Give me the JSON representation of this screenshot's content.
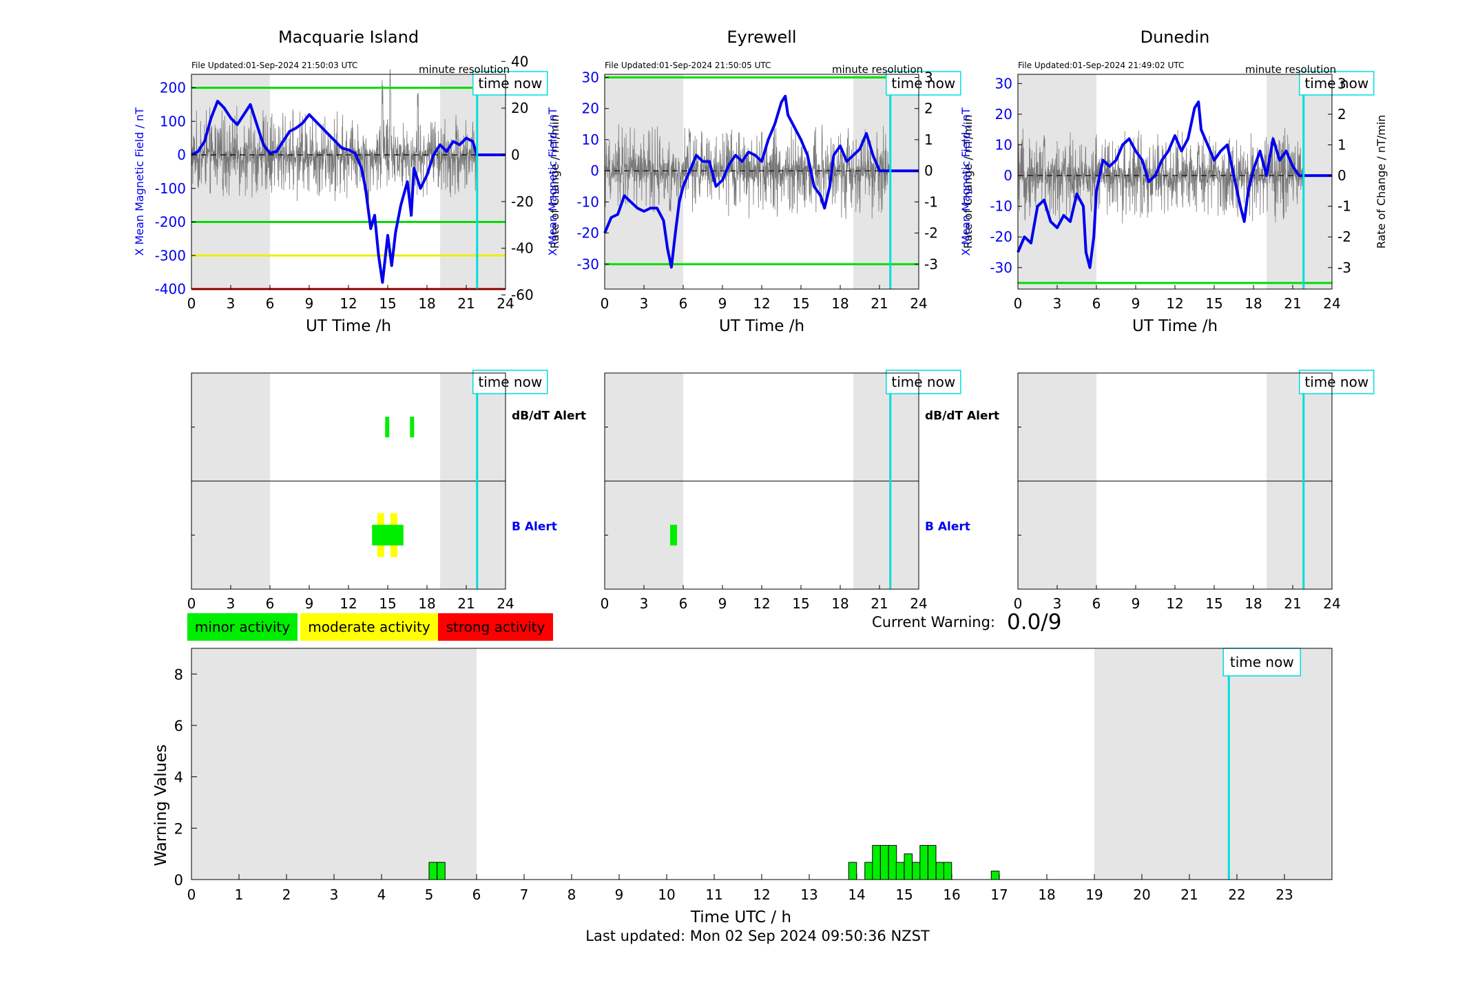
{
  "stations": [
    {
      "name": "Macquarie Island",
      "file_updated": "File Updated:01-Sep-2024 21:50:03 UTC",
      "resolution": "minute resolution",
      "time_now_label": "time now",
      "ylabel_left": "X Mean Magnetic Field / nT",
      "ylabel_right": "Rate of Change / nT/min",
      "xlabel": "UT Time /h",
      "left_ylim": [
        -400,
        240
      ],
      "left_ticks": [
        200,
        100,
        0,
        -100,
        -200,
        -300,
        -400
      ],
      "right_ticks": [
        40,
        20,
        0,
        -20,
        -40,
        -60
      ],
      "threshold_lines": [
        {
          "value": 200,
          "color": "#00dd00"
        },
        {
          "value": -200,
          "color": "#00dd00"
        },
        {
          "value": -300,
          "color": "#eeee00"
        },
        {
          "value": -400,
          "color": "#dd0000"
        }
      ],
      "x_series": [
        [
          0,
          0
        ],
        [
          0.5,
          10
        ],
        [
          1,
          40
        ],
        [
          1.5,
          110
        ],
        [
          2,
          160
        ],
        [
          2.5,
          140
        ],
        [
          3,
          110
        ],
        [
          3.5,
          90
        ],
        [
          4,
          120
        ],
        [
          4.5,
          150
        ],
        [
          5,
          90
        ],
        [
          5.5,
          30
        ],
        [
          6,
          5
        ],
        [
          6.5,
          10
        ],
        [
          7,
          40
        ],
        [
          7.5,
          70
        ],
        [
          8,
          80
        ],
        [
          8.5,
          95
        ],
        [
          9,
          120
        ],
        [
          9.5,
          100
        ],
        [
          10,
          80
        ],
        [
          10.5,
          60
        ],
        [
          11,
          40
        ],
        [
          11.5,
          20
        ],
        [
          12,
          15
        ],
        [
          12.5,
          5
        ],
        [
          13,
          -40
        ],
        [
          13.3,
          -100
        ],
        [
          13.7,
          -220
        ],
        [
          14,
          -180
        ],
        [
          14.3,
          -300
        ],
        [
          14.6,
          -380
        ],
        [
          15,
          -240
        ],
        [
          15.3,
          -330
        ],
        [
          15.6,
          -230
        ],
        [
          16,
          -150
        ],
        [
          16.5,
          -80
        ],
        [
          16.8,
          -180
        ],
        [
          17,
          -40
        ],
        [
          17.5,
          -100
        ],
        [
          18,
          -60
        ],
        [
          18.5,
          0
        ],
        [
          19,
          30
        ],
        [
          19.5,
          10
        ],
        [
          20,
          40
        ],
        [
          20.5,
          30
        ],
        [
          21,
          50
        ],
        [
          21.5,
          40
        ],
        [
          21.8,
          0
        ],
        [
          24,
          0
        ]
      ],
      "roc_amplitude": 14,
      "roc_spikes": [
        [
          13.5,
          -30
        ],
        [
          14.6,
          45
        ],
        [
          15.2,
          50
        ],
        [
          16.7,
          -35
        ],
        [
          17.3,
          38
        ]
      ],
      "alerts": {
        "dbdt_label": "dB/dT Alert",
        "b_label": "B Alert",
        "dbdt": [
          {
            "t0": 14.8,
            "t1": 15.1,
            "level": "minor"
          },
          {
            "t0": 16.7,
            "t1": 17.0,
            "level": "minor"
          }
        ],
        "b": [
          {
            "t0": 14.2,
            "t1": 14.7,
            "level": "moderate"
          },
          {
            "t0": 15.2,
            "t1": 15.6,
            "level": "moderate"
          },
          {
            "t0": 13.8,
            "t1": 16.2,
            "level": "minor"
          }
        ]
      }
    },
    {
      "name": "Eyrewell",
      "file_updated": "File Updated:01-Sep-2024 21:50:05 UTC",
      "resolution": "minute resolution",
      "time_now_label": "time now",
      "ylabel_left": "X Mean Magnetic Field / nT",
      "ylabel_right": "Rate of Change / nT/min",
      "xlabel": "UT Time /h",
      "left_ylim": [
        -38,
        31
      ],
      "left_ticks": [
        30,
        20,
        10,
        0,
        -10,
        -20,
        -30
      ],
      "right_ticks": [
        3,
        2,
        1,
        0,
        -1,
        -2,
        -3
      ],
      "threshold_lines": [
        {
          "value": 30,
          "color": "#00dd00"
        },
        {
          "value": -30,
          "color": "#00dd00"
        }
      ],
      "x_series": [
        [
          0,
          -20
        ],
        [
          0.5,
          -15
        ],
        [
          1,
          -14
        ],
        [
          1.5,
          -8
        ],
        [
          2,
          -10
        ],
        [
          2.5,
          -12
        ],
        [
          3,
          -13
        ],
        [
          3.5,
          -12
        ],
        [
          4,
          -12
        ],
        [
          4.5,
          -16
        ],
        [
          4.8,
          -25
        ],
        [
          5.1,
          -31
        ],
        [
          5.4,
          -20
        ],
        [
          5.7,
          -10
        ],
        [
          6,
          -5
        ],
        [
          6.5,
          0
        ],
        [
          7,
          5
        ],
        [
          7.5,
          3
        ],
        [
          8,
          3
        ],
        [
          8.5,
          -5
        ],
        [
          9,
          -3
        ],
        [
          9.5,
          2
        ],
        [
          10,
          5
        ],
        [
          10.5,
          3
        ],
        [
          11,
          6
        ],
        [
          11.5,
          5
        ],
        [
          12,
          3
        ],
        [
          12.5,
          10
        ],
        [
          13,
          15
        ],
        [
          13.5,
          22
        ],
        [
          13.8,
          24
        ],
        [
          14,
          18
        ],
        [
          14.5,
          14
        ],
        [
          15,
          10
        ],
        [
          15.5,
          5
        ],
        [
          16,
          -5
        ],
        [
          16.5,
          -8
        ],
        [
          16.8,
          -12
        ],
        [
          17.2,
          -5
        ],
        [
          17.5,
          5
        ],
        [
          18,
          8
        ],
        [
          18.5,
          3
        ],
        [
          19,
          5
        ],
        [
          19.5,
          7
        ],
        [
          20,
          12
        ],
        [
          20.5,
          5
        ],
        [
          21,
          0
        ],
        [
          24,
          0
        ]
      ],
      "roc_amplitude": 0.9,
      "roc_spikes": [
        [
          5.0,
          -1.6
        ],
        [
          6.5,
          1.5
        ],
        [
          12.0,
          1.4
        ],
        [
          16.5,
          -1.3
        ]
      ],
      "alerts": {
        "dbdt_label": "dB/dT Alert",
        "b_label": "B Alert",
        "dbdt": [],
        "b": [
          {
            "t0": 5.0,
            "t1": 5.4,
            "level": "minor"
          }
        ]
      }
    },
    {
      "name": "Dunedin",
      "file_updated": "File Updated:01-Sep-2024 21:49:02 UTC",
      "resolution": "minute resolution",
      "time_now_label": "time now",
      "ylabel_left": "X Mean Magnetic Field / nT",
      "ylabel_right": "Rate of Change / nT/min",
      "xlabel": "UT Time /h",
      "left_ylim": [
        -37,
        33
      ],
      "left_ticks": [
        30,
        20,
        10,
        0,
        -10,
        -20,
        -30
      ],
      "right_ticks": [
        3,
        2,
        1,
        0,
        -1,
        -2,
        -3
      ],
      "threshold_lines": [
        {
          "value": -35,
          "color": "#00dd00"
        }
      ],
      "x_series": [
        [
          0,
          -25
        ],
        [
          0.5,
          -20
        ],
        [
          1,
          -22
        ],
        [
          1.5,
          -10
        ],
        [
          2,
          -8
        ],
        [
          2.5,
          -15
        ],
        [
          3,
          -17
        ],
        [
          3.5,
          -13
        ],
        [
          4,
          -15
        ],
        [
          4.5,
          -6
        ],
        [
          5,
          -10
        ],
        [
          5.2,
          -25
        ],
        [
          5.5,
          -30
        ],
        [
          5.8,
          -20
        ],
        [
          6,
          -5
        ],
        [
          6.5,
          5
        ],
        [
          7,
          3
        ],
        [
          7.5,
          5
        ],
        [
          8,
          10
        ],
        [
          8.5,
          12
        ],
        [
          9,
          8
        ],
        [
          9.5,
          5
        ],
        [
          10,
          -2
        ],
        [
          10.5,
          0
        ],
        [
          11,
          5
        ],
        [
          11.5,
          8
        ],
        [
          12,
          13
        ],
        [
          12.5,
          8
        ],
        [
          13,
          12
        ],
        [
          13.5,
          22
        ],
        [
          13.8,
          24
        ],
        [
          14,
          15
        ],
        [
          14.5,
          10
        ],
        [
          15,
          5
        ],
        [
          15.5,
          8
        ],
        [
          16,
          10
        ],
        [
          16.5,
          0
        ],
        [
          17,
          -10
        ],
        [
          17.3,
          -15
        ],
        [
          17.6,
          -5
        ],
        [
          18,
          2
        ],
        [
          18.5,
          8
        ],
        [
          19,
          0
        ],
        [
          19.5,
          12
        ],
        [
          20,
          5
        ],
        [
          20.5,
          8
        ],
        [
          21,
          3
        ],
        [
          21.5,
          0
        ],
        [
          24,
          0
        ]
      ],
      "roc_amplitude": 0.9,
      "roc_spikes": [
        [
          2.0,
          1.6
        ],
        [
          5.6,
          -1.3
        ],
        [
          9.5,
          -1.5
        ],
        [
          13.8,
          1.2
        ]
      ],
      "alerts": {
        "dbdt_label": "",
        "b_label": "",
        "dbdt": [],
        "b": []
      }
    }
  ],
  "time_now_h": 21.83,
  "night_shading": [
    [
      0,
      6
    ],
    [
      19,
      24
    ]
  ],
  "x_ticks": [
    0,
    3,
    6,
    9,
    12,
    15,
    18,
    21,
    24
  ],
  "legend": {
    "minor": {
      "label": "minor activity",
      "color": "#00ee00"
    },
    "moderate": {
      "label": "moderate activity",
      "color": "#ffff00"
    },
    "strong": {
      "label": "strong activity",
      "color": "#ff0000"
    }
  },
  "current_warning": {
    "label": "Current Warning:",
    "value": "0.0/9"
  },
  "chart_data": {
    "type": "bar",
    "xlabel": "Time UTC / h",
    "ylabel": "Warning Values",
    "ylim": [
      0,
      9
    ],
    "xlim": [
      0,
      24
    ],
    "y_ticks": [
      0,
      2,
      4,
      6,
      8
    ],
    "x_ticks": [
      0,
      1,
      2,
      3,
      4,
      5,
      6,
      7,
      8,
      9,
      10,
      11,
      12,
      13,
      14,
      15,
      16,
      17,
      18,
      19,
      20,
      21,
      22,
      23
    ],
    "shaded_hours": [
      [
        0,
        6
      ],
      [
        19,
        24
      ]
    ],
    "time_now_h": 21.83,
    "time_now_label": "time now",
    "bar_color": "#00ee00",
    "bar_width_h": 0.1667,
    "bars": [
      {
        "t": 5.0,
        "value": 0.67
      },
      {
        "t": 5.17,
        "value": 0.67
      },
      {
        "t": 13.83,
        "value": 0.67
      },
      {
        "t": 14.17,
        "value": 0.67
      },
      {
        "t": 14.33,
        "value": 1.33
      },
      {
        "t": 14.5,
        "value": 1.33
      },
      {
        "t": 14.67,
        "value": 1.33
      },
      {
        "t": 14.83,
        "value": 0.67
      },
      {
        "t": 15.0,
        "value": 1.0
      },
      {
        "t": 15.17,
        "value": 0.67
      },
      {
        "t": 15.33,
        "value": 1.33
      },
      {
        "t": 15.5,
        "value": 1.33
      },
      {
        "t": 15.67,
        "value": 0.67
      },
      {
        "t": 15.83,
        "value": 0.67
      },
      {
        "t": 16.83,
        "value": 0.33
      }
    ]
  },
  "last_updated": "Last updated: Mon 02 Sep 2024 09:50:36 NZST"
}
